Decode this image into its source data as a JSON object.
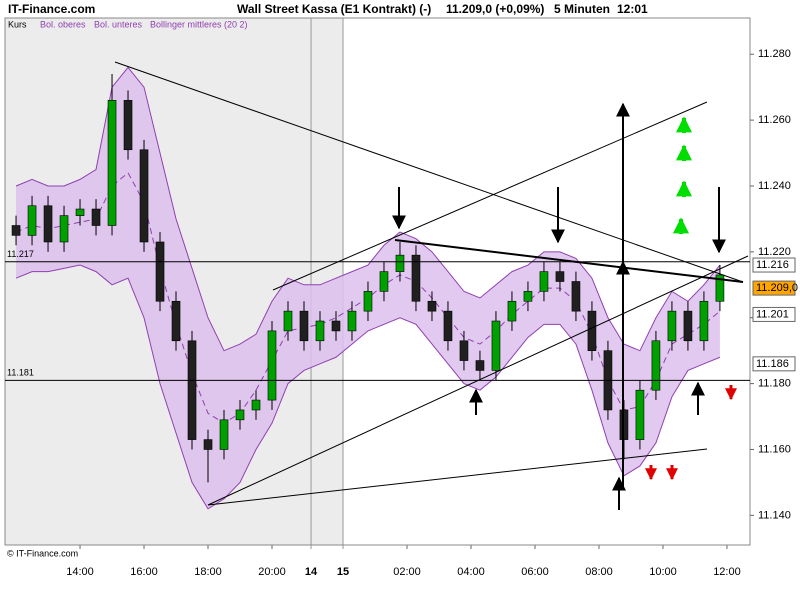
{
  "header": {
    "site": "IT-Finance.com",
    "instrument": "Wall Street Kassa (E1 Kontrakt) (-)",
    "quote": "11.209,0 (+0,09%)",
    "interval": "5 Minuten",
    "time": "12:01"
  },
  "footer": "© IT-Finance.com",
  "chart_data": {
    "type": "candlestick",
    "name": "Kurs",
    "up_color": "#00a000",
    "down_color": "#202020",
    "x": [
      1,
      2,
      3,
      4,
      5,
      6,
      7,
      8,
      9,
      10,
      11,
      12,
      13,
      14,
      15,
      16,
      17,
      18,
      19,
      20,
      21,
      22,
      23,
      24,
      25,
      26,
      27,
      28,
      29,
      30,
      31,
      32,
      33,
      34,
      35,
      36,
      37,
      38,
      39,
      40,
      41,
      42,
      43,
      44,
      45
    ],
    "open": [
      11.228,
      11.225,
      11.234,
      11.223,
      11.231,
      11.233,
      11.228,
      11.266,
      11.251,
      11.223,
      11.205,
      11.193,
      11.163,
      11.16,
      11.169,
      11.172,
      11.175,
      11.196,
      11.202,
      11.193,
      11.199,
      11.196,
      11.202,
      11.208,
      11.214,
      11.219,
      11.205,
      11.202,
      11.193,
      11.187,
      11.184,
      11.199,
      11.205,
      11.208,
      11.214,
      11.211,
      11.202,
      11.19,
      11.172,
      11.163,
      11.178,
      11.193,
      11.202,
      11.193,
      11.205
    ],
    "high": [
      11.231,
      11.237,
      11.237,
      11.234,
      11.236,
      11.236,
      11.274,
      11.269,
      11.254,
      11.226,
      11.208,
      11.196,
      11.166,
      11.172,
      11.175,
      11.178,
      11.199,
      11.205,
      11.205,
      11.202,
      11.202,
      11.205,
      11.211,
      11.217,
      11.223,
      11.222,
      11.208,
      11.205,
      11.196,
      11.19,
      11.202,
      11.208,
      11.211,
      11.217,
      11.217,
      11.214,
      11.205,
      11.193,
      11.175,
      11.181,
      11.196,
      11.205,
      11.205,
      11.208,
      11.216
    ],
    "low": [
      11.222,
      11.222,
      11.22,
      11.22,
      11.228,
      11.225,
      11.225,
      11.248,
      11.22,
      11.202,
      11.19,
      11.16,
      11.15,
      11.157,
      11.166,
      11.169,
      11.172,
      11.193,
      11.19,
      11.19,
      11.193,
      11.193,
      11.199,
      11.205,
      11.211,
      11.202,
      11.199,
      11.19,
      11.184,
      11.181,
      11.181,
      11.196,
      11.202,
      11.205,
      11.208,
      11.199,
      11.187,
      11.169,
      11.157,
      11.16,
      11.175,
      11.19,
      11.19,
      11.19,
      11.202
    ],
    "close": [
      11.225,
      11.234,
      11.223,
      11.231,
      11.233,
      11.228,
      11.266,
      11.251,
      11.223,
      11.205,
      11.193,
      11.163,
      11.16,
      11.169,
      11.172,
      11.175,
      11.196,
      11.202,
      11.193,
      11.199,
      11.196,
      11.202,
      11.208,
      11.214,
      11.219,
      11.205,
      11.202,
      11.193,
      11.187,
      11.184,
      11.199,
      11.205,
      11.208,
      11.214,
      11.211,
      11.202,
      11.19,
      11.172,
      11.163,
      11.178,
      11.193,
      11.202,
      11.193,
      11.205,
      11.213
    ],
    "series": [
      {
        "name": "Bol. oberes",
        "color": "#9040b0",
        "values": [
          11.24,
          11.242,
          11.24,
          11.24,
          11.242,
          11.245,
          11.27,
          11.276,
          11.27,
          11.25,
          11.23,
          11.215,
          11.2,
          11.19,
          11.192,
          11.195,
          11.205,
          11.212,
          11.21,
          11.21,
          11.212,
          11.214,
          11.216,
          11.222,
          11.226,
          11.224,
          11.22,
          11.214,
          11.208,
          11.206,
          11.21,
          11.214,
          11.216,
          11.22,
          11.22,
          11.218,
          11.212,
          11.2,
          11.192,
          11.19,
          11.2,
          11.208,
          11.205,
          11.21,
          11.216
        ]
      },
      {
        "name": "Bol. unteres",
        "color": "#9040b0",
        "values": [
          11.212,
          11.214,
          11.214,
          11.215,
          11.216,
          11.214,
          11.21,
          11.212,
          11.2,
          11.18,
          11.165,
          11.15,
          11.142,
          11.145,
          11.15,
          11.16,
          11.168,
          11.18,
          11.184,
          11.186,
          11.188,
          11.192,
          11.196,
          11.198,
          11.2,
          11.198,
          11.192,
          11.186,
          11.18,
          11.178,
          11.182,
          11.188,
          11.194,
          11.198,
          11.198,
          11.192,
          11.178,
          11.162,
          11.152,
          11.155,
          11.162,
          11.176,
          11.184,
          11.186,
          11.188
        ]
      },
      {
        "name": "Bollinger mittleres (20 2)",
        "color": "#9040b0",
        "values": [
          11.226,
          11.228,
          11.227,
          11.228,
          11.229,
          11.23,
          11.24,
          11.244,
          11.235,
          11.215,
          11.198,
          11.183,
          11.171,
          11.168,
          11.171,
          11.178,
          11.187,
          11.196,
          11.197,
          11.198,
          11.2,
          11.203,
          11.206,
          11.21,
          11.213,
          11.211,
          11.206,
          11.2,
          11.194,
          11.192,
          11.196,
          11.201,
          11.205,
          11.209,
          11.209,
          11.205,
          11.195,
          11.181,
          11.172,
          11.173,
          11.181,
          11.192,
          11.195,
          11.198,
          11.202
        ]
      }
    ],
    "band_fill": "#dcc0ec",
    "xlim": [
      0.31,
      46.88
    ],
    "ylim": [
      11.131,
      11.291
    ],
    "xticks": [
      {
        "value": 5,
        "label": "14:00"
      },
      {
        "value": 9,
        "label": "16:00"
      },
      {
        "value": 13,
        "label": "18:00"
      },
      {
        "value": 17,
        "label": "20:00"
      },
      {
        "value": 19.44,
        "label": "14"
      },
      {
        "value": 21.44,
        "label": "15"
      },
      {
        "value": 25.44,
        "label": "02:00"
      },
      {
        "value": 29.44,
        "label": "04:00"
      },
      {
        "value": 33.44,
        "label": "06:00"
      },
      {
        "value": 37.44,
        "label": "08:00"
      },
      {
        "value": 41.44,
        "label": "10:00"
      },
      {
        "value": 45.44,
        "label": "12:00"
      }
    ],
    "yticks": [
      {
        "value": 11.14,
        "label": "11.140"
      },
      {
        "value": 11.16,
        "label": "11.160"
      },
      {
        "value": 11.18,
        "label": "11.180"
      },
      {
        "value": 11.2,
        "label": "11.200"
      },
      {
        "value": 11.22,
        "label": "11.220"
      },
      {
        "value": 11.24,
        "label": "11.240"
      },
      {
        "value": 11.26,
        "label": "11.260"
      },
      {
        "value": 11.28,
        "label": "11.280"
      }
    ],
    "levels": [
      11.217,
      11.181
    ],
    "markers": [
      {
        "value": 11.216,
        "color": "#ffffff"
      },
      {
        "value": 11.209,
        "label": "11.209,0",
        "color": "#ffa500"
      },
      {
        "value": 11.201,
        "color": "#ffffff"
      },
      {
        "value": 11.186,
        "color": "#ffffff"
      }
    ]
  }
}
